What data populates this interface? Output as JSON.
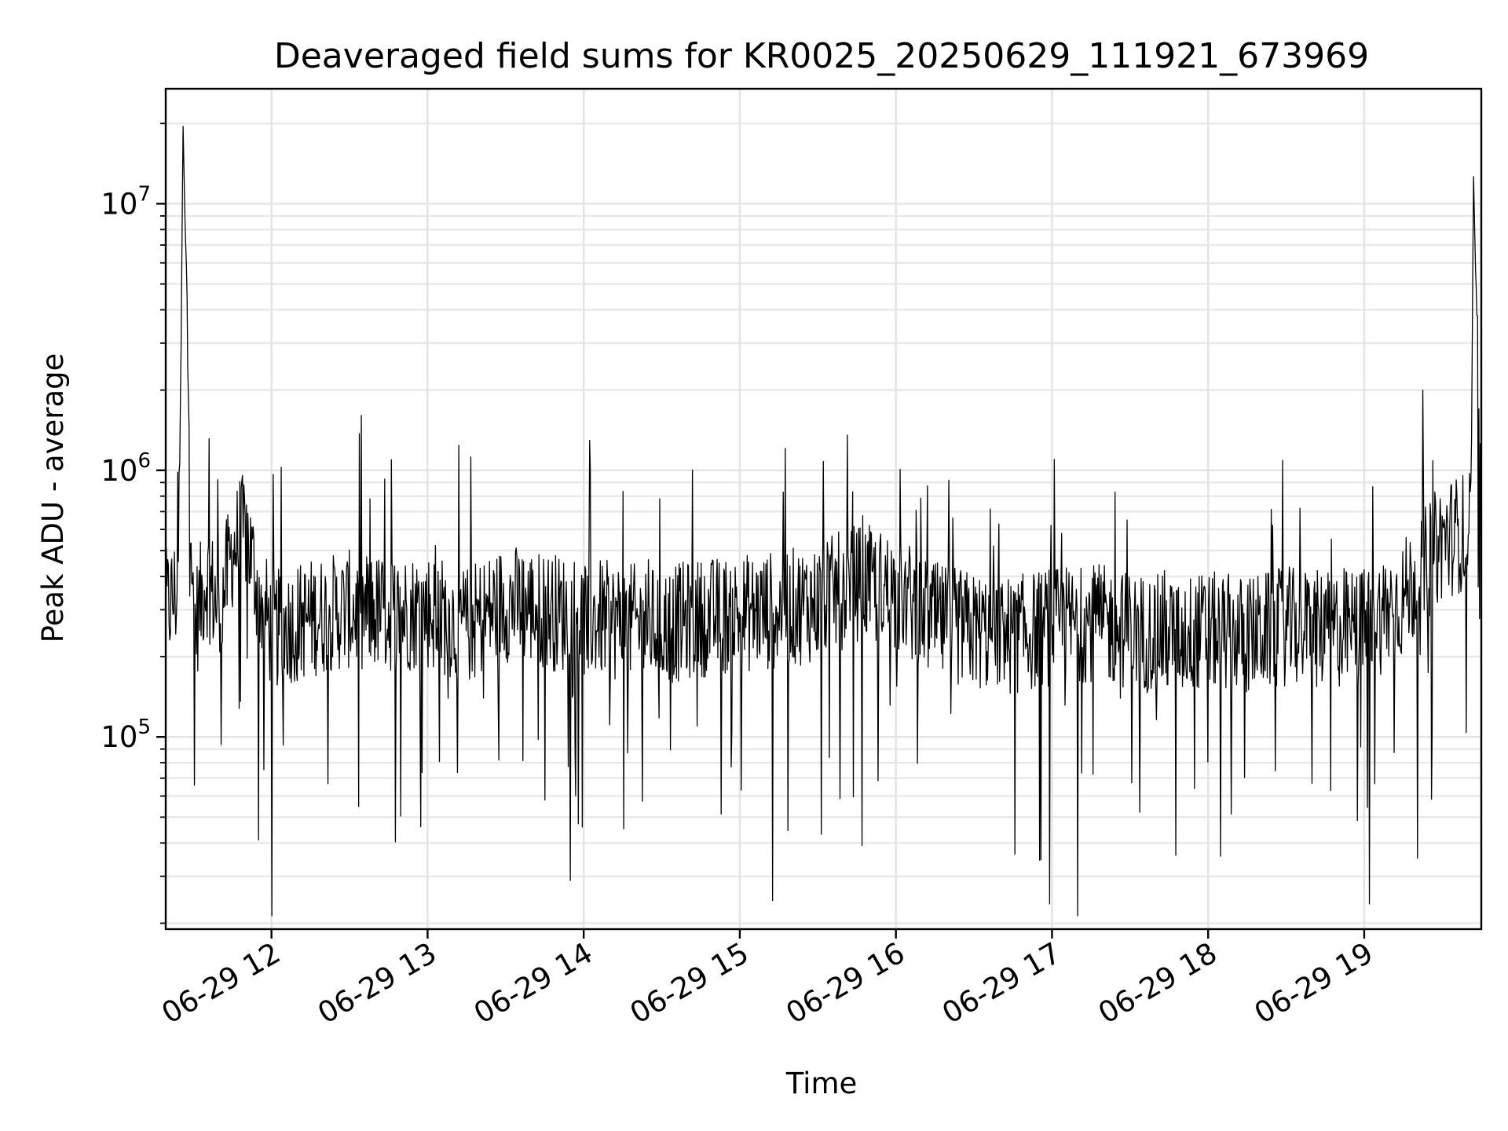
{
  "chart_data": {
    "type": "line",
    "title": "Deaveraged field sums for KR0025_20250629_111921_673969",
    "xlabel": "Time",
    "ylabel": "Peak ADU - average",
    "yscale": "log",
    "ylim": [
      19000,
      27000000
    ],
    "xlim": [
      "2025-06-29 11:19:21",
      "2025-06-29 19:45:00"
    ],
    "x_ticks": [
      {
        "label": "06-29 12",
        "time": "2025-06-29 12:00"
      },
      {
        "label": "06-29 13",
        "time": "2025-06-29 13:00"
      },
      {
        "label": "06-29 14",
        "time": "2025-06-29 14:00"
      },
      {
        "label": "06-29 15",
        "time": "2025-06-29 15:00"
      },
      {
        "label": "06-29 16",
        "time": "2025-06-29 16:00"
      },
      {
        "label": "06-29 17",
        "time": "2025-06-29 17:00"
      },
      {
        "label": "06-29 18",
        "time": "2025-06-29 18:00"
      },
      {
        "label": "06-29 19",
        "time": "2025-06-29 19:00"
      }
    ],
    "y_ticks": [
      {
        "base": "10",
        "exp": "5",
        "value": 100000
      },
      {
        "base": "10",
        "exp": "6",
        "value": 1000000
      },
      {
        "base": "10",
        "exp": "7",
        "value": 10000000
      }
    ],
    "grid": "both (major and minor)",
    "legend": "none",
    "line_color": "#000000",
    "series": [
      {
        "x": [
          "2025-06-29 11:19",
          "2025-06-29 11:24",
          "2025-06-29 11:25",
          "2025-06-29 11:26",
          "2025-06-29 11:30",
          "2025-06-29 11:35",
          "2025-06-29 11:40",
          "2025-06-29 11:45",
          "2025-06-29 11:50",
          "2025-06-29 11:55",
          "2025-06-29 12:00",
          "2025-06-29 12:15",
          "2025-06-29 12:30",
          "2025-06-29 12:45",
          "2025-06-29 13:00",
          "2025-06-29 13:15",
          "2025-06-29 13:30",
          "2025-06-29 13:45",
          "2025-06-29 14:00",
          "2025-06-29 14:15",
          "2025-06-29 14:30",
          "2025-06-29 14:45",
          "2025-06-29 15:00",
          "2025-06-29 15:15",
          "2025-06-29 15:30",
          "2025-06-29 15:45",
          "2025-06-29 16:00",
          "2025-06-29 16:15",
          "2025-06-29 16:30",
          "2025-06-29 16:45",
          "2025-06-29 17:00",
          "2025-06-29 17:15",
          "2025-06-29 17:30",
          "2025-06-29 17:45",
          "2025-06-29 18:00",
          "2025-06-29 18:15",
          "2025-06-29 18:30",
          "2025-06-29 18:45",
          "2025-06-29 19:00",
          "2025-06-29 19:15",
          "2025-06-29 19:30",
          "2025-06-29 19:41",
          "2025-06-29 19:42",
          "2025-06-29 19:45"
        ],
        "y": [
          300000,
          350000,
          1500000,
          20000000,
          250000,
          400000,
          300000,
          500000,
          600000,
          350000,
          250000,
          280000,
          300000,
          290000,
          300000,
          260000,
          320000,
          300000,
          280000,
          270000,
          260000,
          280000,
          290000,
          300000,
          320000,
          380000,
          350000,
          270000,
          250000,
          240000,
          260000,
          270000,
          250000,
          240000,
          250000,
          240000,
          260000,
          250000,
          260000,
          330000,
          550000,
          600000,
          13000000,
          550000
        ]
      }
    ]
  }
}
